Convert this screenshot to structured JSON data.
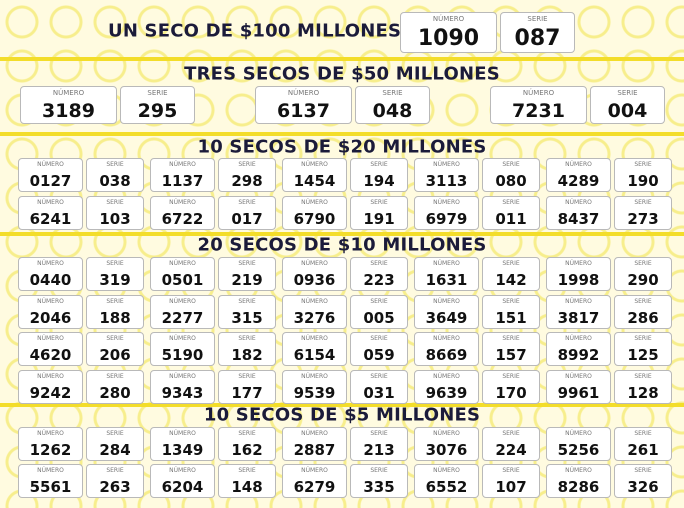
{
  "labels": {
    "number": "NÚMERO",
    "series": "SERIE"
  },
  "sections": [
    {
      "title": "UN SECO DE $100 MILLONES",
      "tickets": [
        {
          "number": "1090",
          "series": "087"
        }
      ]
    },
    {
      "title": "TRES SECOS DE $50 MILLONES",
      "tickets": [
        {
          "number": "3189",
          "series": "295"
        },
        {
          "number": "6137",
          "series": "048"
        },
        {
          "number": "7231",
          "series": "004"
        }
      ]
    },
    {
      "title": "10 SECOS DE $20 MILLONES",
      "tickets": [
        {
          "number": "0127",
          "series": "038"
        },
        {
          "number": "1137",
          "series": "298"
        },
        {
          "number": "1454",
          "series": "194"
        },
        {
          "number": "3113",
          "series": "080"
        },
        {
          "number": "4289",
          "series": "190"
        },
        {
          "number": "6241",
          "series": "103"
        },
        {
          "number": "6722",
          "series": "017"
        },
        {
          "number": "6790",
          "series": "191"
        },
        {
          "number": "6979",
          "series": "011"
        },
        {
          "number": "8437",
          "series": "273"
        }
      ]
    },
    {
      "title": "20 SECOS DE $10 MILLONES",
      "tickets": [
        {
          "number": "0440",
          "series": "319"
        },
        {
          "number": "0501",
          "series": "219"
        },
        {
          "number": "0936",
          "series": "223"
        },
        {
          "number": "1631",
          "series": "142"
        },
        {
          "number": "1998",
          "series": "290"
        },
        {
          "number": "2046",
          "series": "188"
        },
        {
          "number": "2277",
          "series": "315"
        },
        {
          "number": "3276",
          "series": "005"
        },
        {
          "number": "3649",
          "series": "151"
        },
        {
          "number": "3817",
          "series": "286"
        },
        {
          "number": "4620",
          "series": "206"
        },
        {
          "number": "5190",
          "series": "182"
        },
        {
          "number": "6154",
          "series": "059"
        },
        {
          "number": "8669",
          "series": "157"
        },
        {
          "number": "8992",
          "series": "125"
        },
        {
          "number": "9242",
          "series": "280"
        },
        {
          "number": "9343",
          "series": "177"
        },
        {
          "number": "9539",
          "series": "031"
        },
        {
          "number": "9639",
          "series": "170"
        },
        {
          "number": "9961",
          "series": "128"
        }
      ]
    },
    {
      "title": "10 SECOS DE $5 MILLONES",
      "tickets": [
        {
          "number": "1262",
          "series": "284"
        },
        {
          "number": "1349",
          "series": "162"
        },
        {
          "number": "2887",
          "series": "213"
        },
        {
          "number": "3076",
          "series": "224"
        },
        {
          "number": "5256",
          "series": "261"
        },
        {
          "number": "5561",
          "series": "263"
        },
        {
          "number": "6204",
          "series": "148"
        },
        {
          "number": "6279",
          "series": "335"
        },
        {
          "number": "6552",
          "series": "107"
        },
        {
          "number": "8286",
          "series": "326"
        }
      ]
    }
  ]
}
